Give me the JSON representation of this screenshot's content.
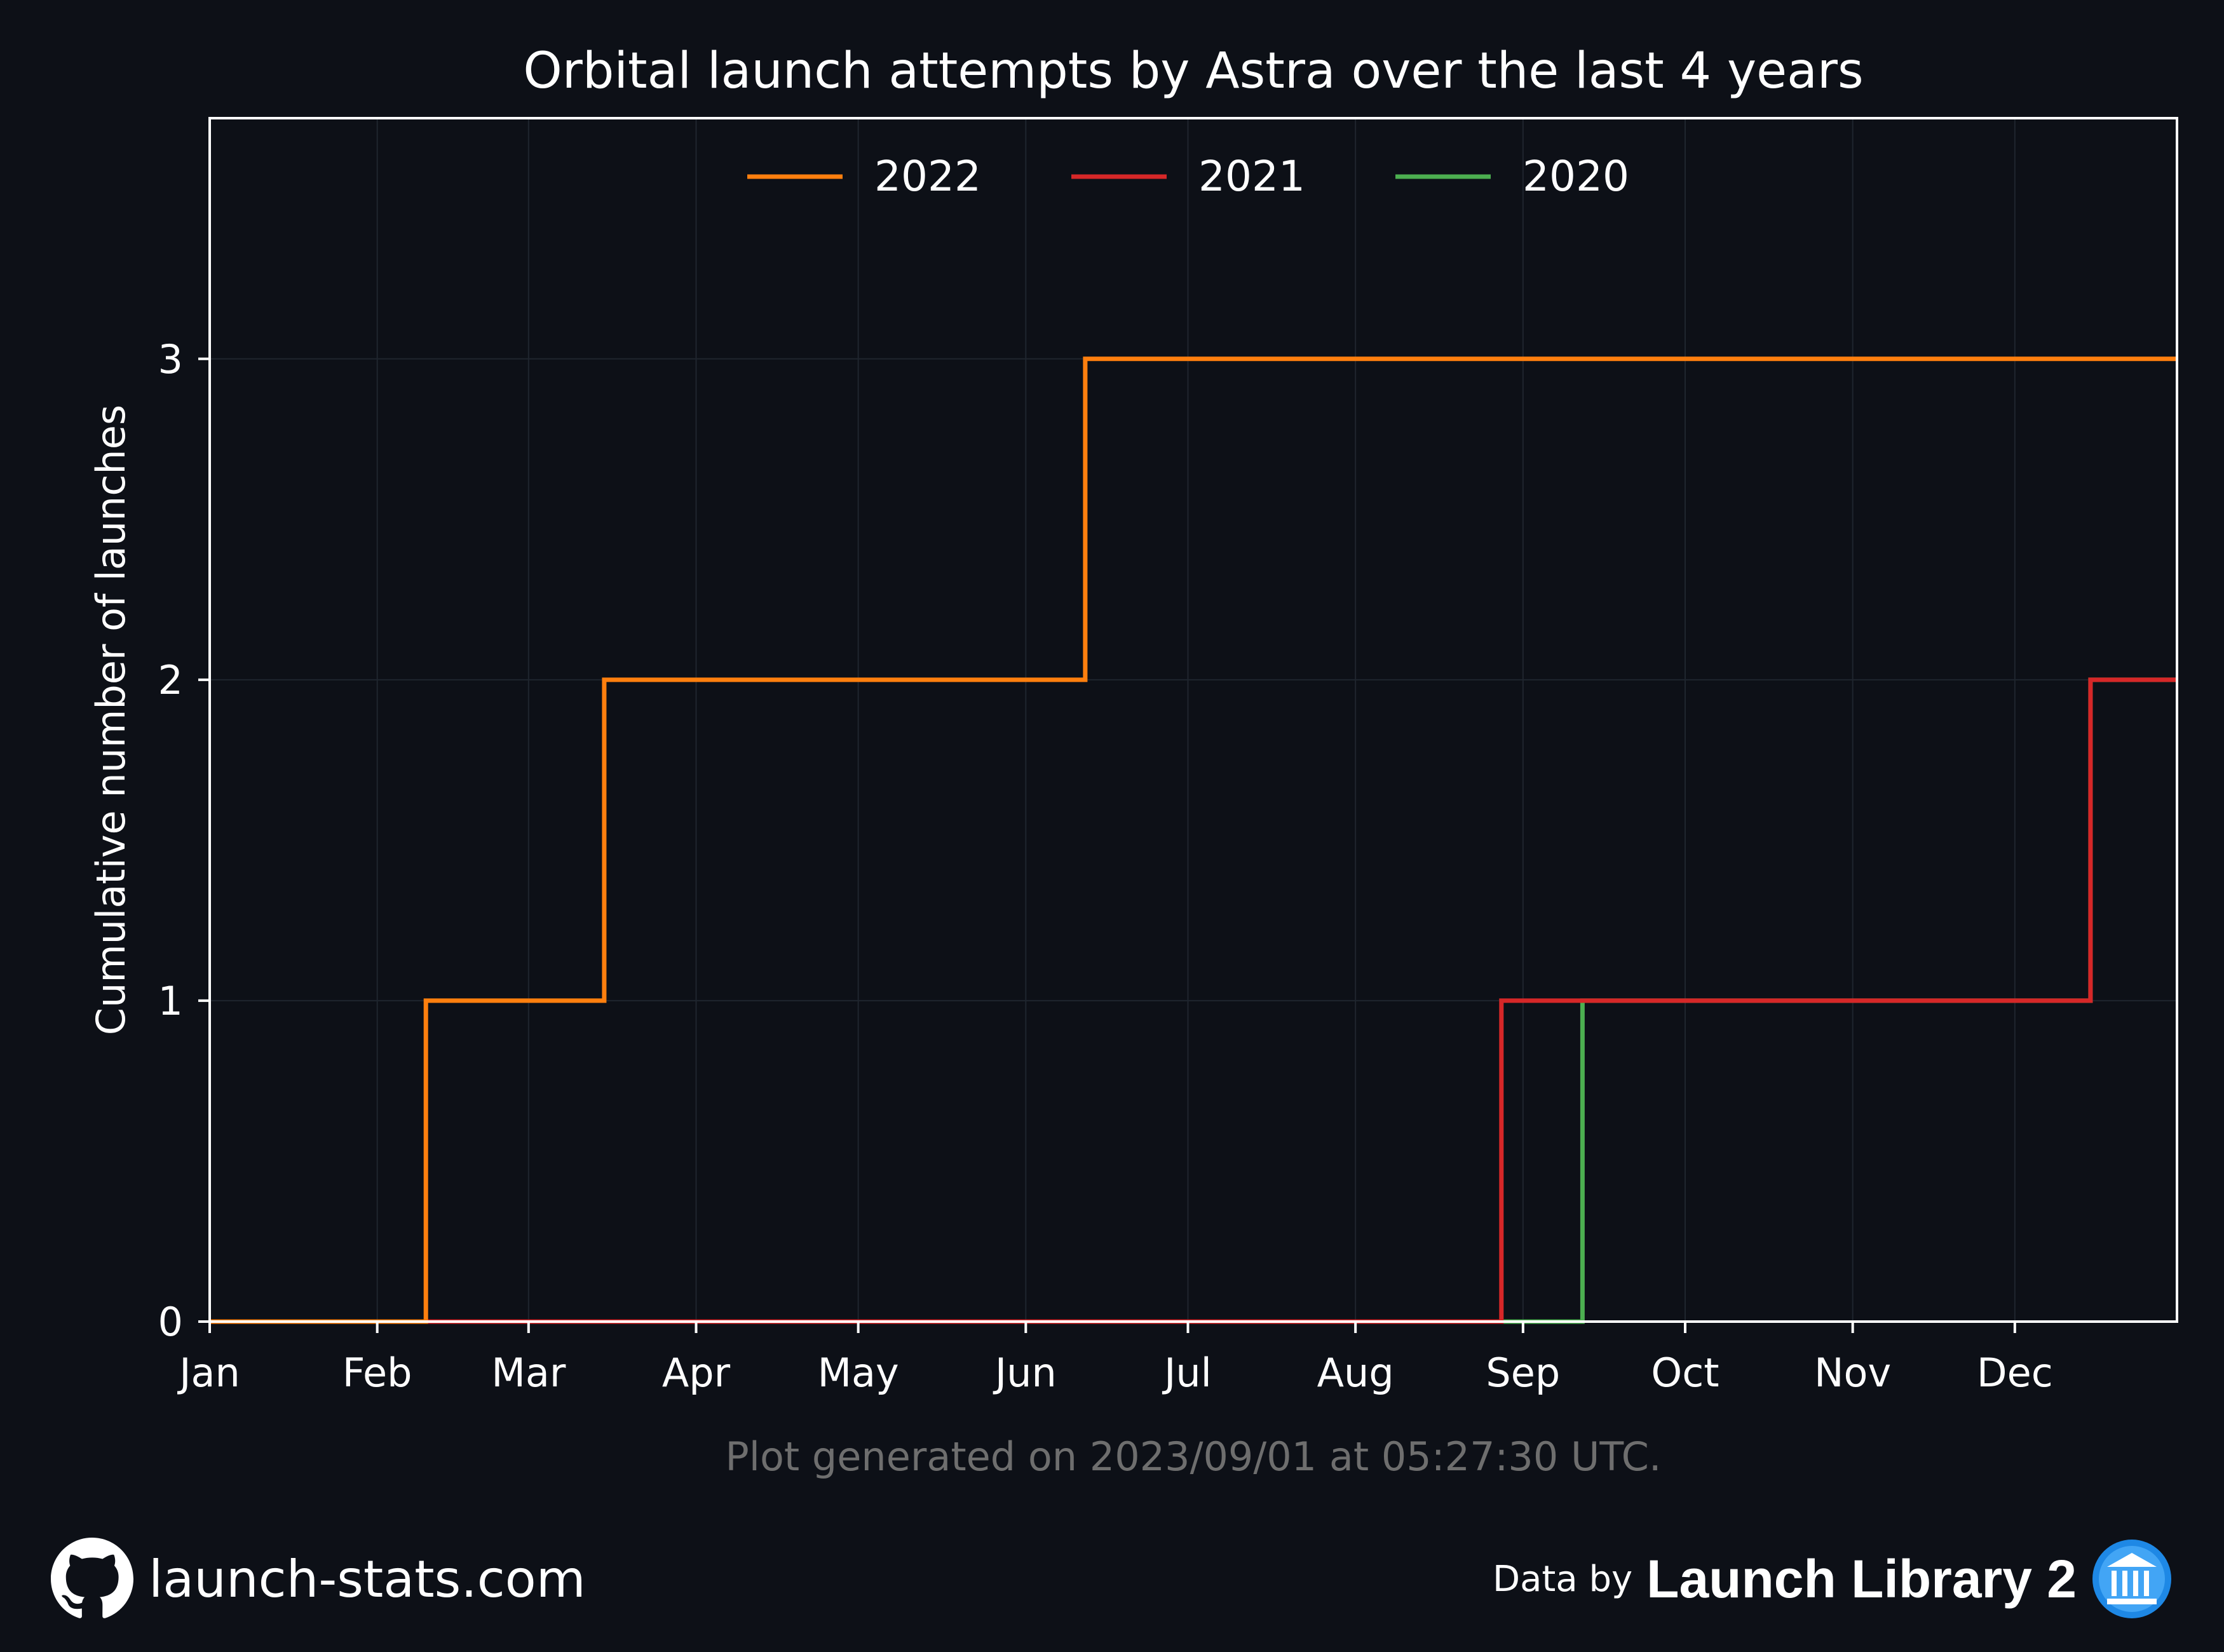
{
  "chart_data": {
    "type": "line",
    "step": true,
    "title": "Orbital launch attempts by Astra over the last 4 years",
    "xlabel": "",
    "ylabel": "Cumulative number of launches",
    "x_tick_labels": [
      "Jan",
      "Feb",
      "Mar",
      "Apr",
      "May",
      "Jun",
      "Jul",
      "Aug",
      "Sep",
      "Oct",
      "Nov",
      "Dec"
    ],
    "y_ticks": [
      0,
      1,
      2,
      3
    ],
    "ylim": [
      0,
      3.75
    ],
    "xlim": [
      "01-01",
      "12-31"
    ],
    "grid": true,
    "legend_position": "top-center",
    "series": [
      {
        "name": "2022",
        "color": "#ff7f0e",
        "x": [
          "01-01",
          "02-10",
          "03-15",
          "06-12",
          "12-31"
        ],
        "y": [
          0,
          1,
          2,
          3,
          3
        ]
      },
      {
        "name": "2021",
        "color": "#d62728",
        "x": [
          "01-01",
          "08-28",
          "12-15",
          "12-31"
        ],
        "y": [
          0,
          1,
          2,
          2
        ]
      },
      {
        "name": "2020",
        "color": "#4caf50",
        "x": [
          "01-01",
          "09-12",
          "12-15",
          "12-31"
        ],
        "y": [
          0,
          1,
          2,
          2
        ]
      }
    ]
  },
  "footnote": "Plot generated on 2023/09/01 at 05:27:30 UTC.",
  "footer": {
    "site": "launch-stats.com",
    "site_icon": "github-icon",
    "data_by": "Data by",
    "provider": "Launch Library 2",
    "provider_icon": "launch-library-logo-icon"
  },
  "colors": {
    "background": "#0d1017",
    "axes": "#ffffff",
    "grid": "#1f252e",
    "footnote": "#6e6e6e"
  }
}
